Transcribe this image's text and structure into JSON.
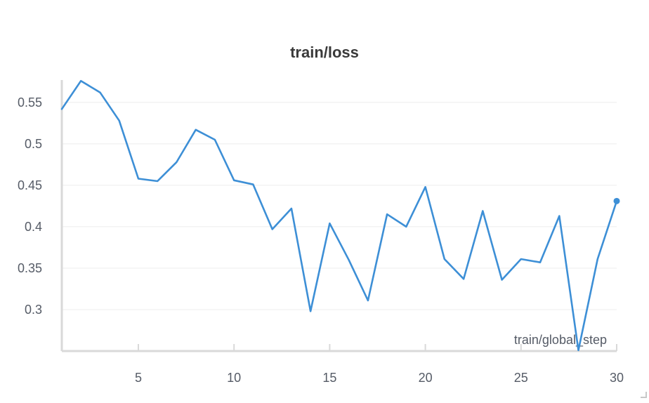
{
  "chart_data": {
    "type": "line",
    "title": "train/loss",
    "xlabel": "train/global_step",
    "ylabel": "",
    "xlim": [
      1,
      30
    ],
    "ylim": [
      0.25,
      0.577
    ],
    "x_ticks": [
      5,
      10,
      15,
      20,
      25,
      30
    ],
    "y_ticks": [
      0.3,
      0.35,
      0.4,
      0.45,
      0.5,
      0.55
    ],
    "y_tick_labels": [
      "0.3",
      "0.35",
      "0.4",
      "0.45",
      "0.5",
      "0.55"
    ],
    "grid": true,
    "legend": "none",
    "color": "#3d8fd6",
    "series": [
      {
        "x": [
          1,
          2,
          3,
          4,
          5,
          6,
          7,
          8,
          9,
          10,
          11,
          12,
          13,
          14,
          15,
          16,
          17,
          18,
          19,
          20,
          21,
          22,
          23,
          24,
          25,
          26,
          27,
          28,
          29,
          30
        ],
        "values": [
          0.542,
          0.576,
          0.562,
          0.528,
          0.458,
          0.455,
          0.478,
          0.517,
          0.505,
          0.456,
          0.451,
          0.397,
          0.422,
          0.298,
          0.404,
          0.36,
          0.311,
          0.415,
          0.4,
          0.448,
          0.361,
          0.337,
          0.419,
          0.336,
          0.361,
          0.357,
          0.413,
          0.251,
          0.361,
          0.431
        ]
      }
    ]
  }
}
